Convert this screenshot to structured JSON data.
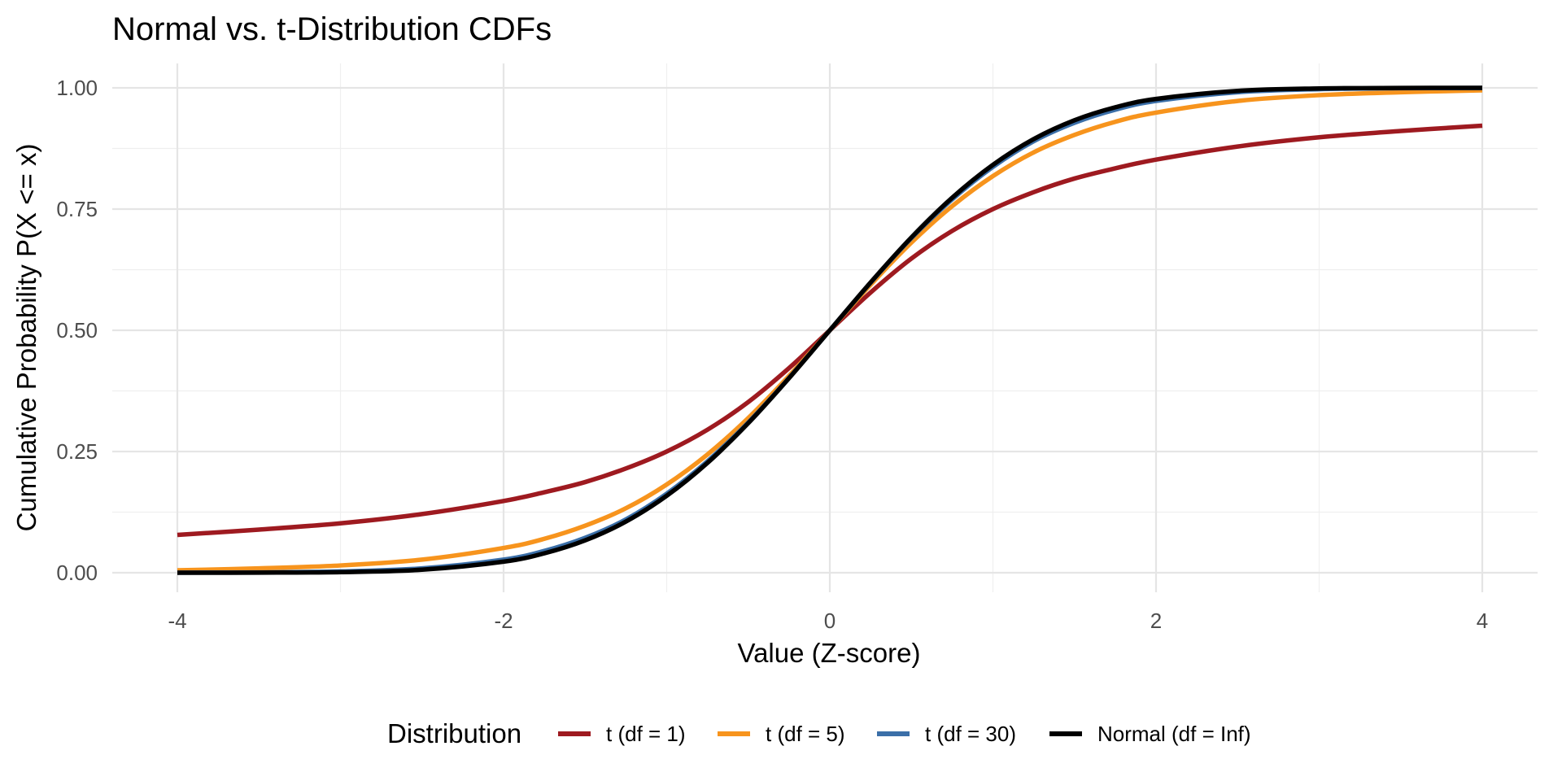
{
  "chart_data": {
    "type": "line",
    "title": "Normal vs. t-Distribution CDFs",
    "xlabel": "Value (Z-score)",
    "ylabel": "Cumulative Probability P(X <= x)",
    "xlim": [
      -4,
      4
    ],
    "ylim": [
      0,
      1
    ],
    "x_ticks": [
      -4,
      -2,
      0,
      2,
      4
    ],
    "x_tick_labels": [
      "-4",
      "-2",
      "0",
      "2",
      "4"
    ],
    "y_ticks": [
      0,
      0.25,
      0.5,
      0.75,
      1
    ],
    "y_tick_labels": [
      "0.00",
      "0.25",
      "0.50",
      "0.75",
      "1.00"
    ],
    "grid": true,
    "legend": {
      "title": "Distribution",
      "position": "bottom"
    },
    "x": [
      -4,
      -3.5,
      -3,
      -2.5,
      -2,
      -1.75,
      -1.5,
      -1.25,
      -1,
      -0.75,
      -0.5,
      -0.25,
      0,
      0.25,
      0.5,
      0.75,
      1,
      1.25,
      1.5,
      1.75,
      2,
      2.5,
      3,
      3.5,
      4
    ],
    "series": [
      {
        "name": "t (df = 1)",
        "color": "#9e1a20",
        "values": [
          0.078,
          0.089,
          0.102,
          0.121,
          0.148,
          0.166,
          0.187,
          0.215,
          0.25,
          0.295,
          0.352,
          0.422,
          0.5,
          0.578,
          0.648,
          0.705,
          0.75,
          0.785,
          0.813,
          0.834,
          0.852,
          0.879,
          0.898,
          0.911,
          0.922
        ]
      },
      {
        "name": "t (df = 5)",
        "color": "#f7941d",
        "values": [
          0.005,
          0.009,
          0.015,
          0.027,
          0.051,
          0.07,
          0.097,
          0.133,
          0.182,
          0.244,
          0.319,
          0.406,
          0.5,
          0.594,
          0.681,
          0.756,
          0.818,
          0.867,
          0.903,
          0.93,
          0.949,
          0.973,
          0.985,
          0.991,
          0.995
        ]
      },
      {
        "name": "t (df = 30)",
        "color": "#3b6fa8",
        "values": [
          0.0002,
          0.0007,
          0.0027,
          0.009,
          0.027,
          0.045,
          0.072,
          0.11,
          0.163,
          0.23,
          0.31,
          0.402,
          0.5,
          0.598,
          0.69,
          0.77,
          0.837,
          0.89,
          0.928,
          0.955,
          0.973,
          0.991,
          0.9973,
          0.9993,
          0.9998
        ]
      },
      {
        "name": "Normal (df = Inf)",
        "color": "#000000",
        "values": [
          3e-05,
          0.0002,
          0.0013,
          0.0062,
          0.0228,
          0.0401,
          0.0668,
          0.1056,
          0.1587,
          0.2266,
          0.3085,
          0.4013,
          0.5,
          0.5987,
          0.6915,
          0.7734,
          0.8413,
          0.8944,
          0.9332,
          0.9599,
          0.9772,
          0.9938,
          0.9987,
          0.9998,
          0.99997
        ]
      }
    ]
  }
}
